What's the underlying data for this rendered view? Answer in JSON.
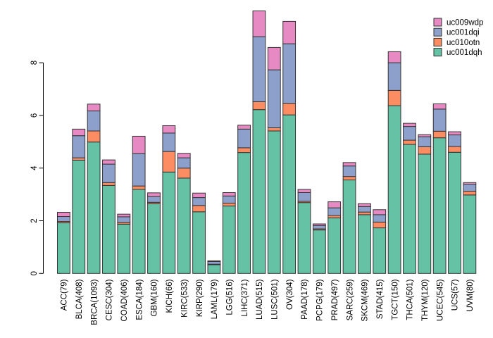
{
  "chart_data": {
    "type": "bar",
    "subtype": "stacked-vertical",
    "title": "",
    "xlabel": "",
    "ylabel": "",
    "grid": false,
    "background": "#ffffff",
    "axis_color": "#000000",
    "bar_border_color": "#333333",
    "ylim": [
      0,
      10.2
    ],
    "yticks": [
      "0",
      "2",
      "4",
      "6",
      "8"
    ],
    "legend_position": "top-right",
    "legend_entries_top_to_bottom": [
      "uc009wdp",
      "uc001dqi",
      "uc010otn",
      "uc001dqh"
    ],
    "categories": [
      "ACC(79)",
      "BLCA(408)",
      "BRCA(1093)",
      "CESC(304)",
      "COAD(406)",
      "ESCA(184)",
      "GBM(160)",
      "KICH(66)",
      "KIRC(533)",
      "KIRP(290)",
      "LAML(179)",
      "LGG(516)",
      "LIHC(371)",
      "LUAD(515)",
      "LUSC(501)",
      "OV(304)",
      "PAAD(178)",
      "PCPG(179)",
      "PRAD(497)",
      "SARC(259)",
      "SKCM(469)",
      "STAD(415)",
      "TGCT(150)",
      "THCA(501)",
      "THYM(120)",
      "UCEC(545)",
      "UCS(57)",
      "UVM(80)"
    ],
    "series": [
      {
        "name": "uc001dqh",
        "color": "#66c2a5",
        "values": [
          1.92,
          4.3,
          4.99,
          3.34,
          1.87,
          3.19,
          2.65,
          3.85,
          3.62,
          2.34,
          0.33,
          2.56,
          4.59,
          6.22,
          5.41,
          6.02,
          2.69,
          1.65,
          2.11,
          3.55,
          2.23,
          1.73,
          6.37,
          4.9,
          4.53,
          5.15,
          4.6,
          2.98
        ]
      },
      {
        "name": "uc010otn",
        "color": "#fc8d62",
        "values": [
          0.05,
          0.09,
          0.42,
          0.11,
          0.07,
          0.13,
          0.05,
          0.78,
          0.38,
          0.24,
          0.02,
          0.11,
          0.18,
          0.3,
          0.12,
          0.44,
          0.05,
          0.04,
          0.09,
          0.13,
          0.1,
          0.22,
          0.58,
          0.16,
          0.28,
          0.25,
          0.22,
          0.14
        ]
      },
      {
        "name": "uc001dqi",
        "color": "#8da0cb",
        "values": [
          0.19,
          0.84,
          0.76,
          0.7,
          0.21,
          1.23,
          0.22,
          0.7,
          0.39,
          0.3,
          0.1,
          0.27,
          0.71,
          2.47,
          2.2,
          2.26,
          0.33,
          0.13,
          0.29,
          0.4,
          0.21,
          0.28,
          1.05,
          0.52,
          0.38,
          0.84,
          0.44,
          0.27
        ]
      },
      {
        "name": "uc009wdp",
        "color": "#e78ac3",
        "values": [
          0.16,
          0.25,
          0.26,
          0.16,
          0.1,
          0.66,
          0.14,
          0.28,
          0.17,
          0.17,
          0.03,
          0.13,
          0.15,
          0.98,
          0.85,
          0.85,
          0.12,
          0.06,
          0.23,
          0.13,
          0.11,
          0.19,
          0.42,
          0.12,
          0.08,
          0.2,
          0.12,
          0.06
        ]
      }
    ]
  }
}
